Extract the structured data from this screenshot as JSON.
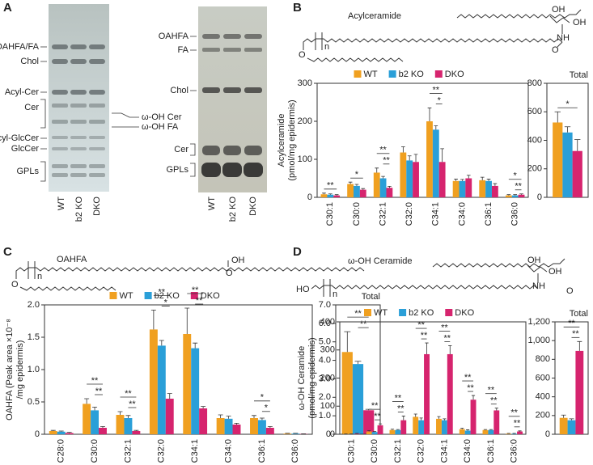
{
  "panels": [
    "A",
    "B",
    "C",
    "D"
  ],
  "tlc": {
    "left_labels": [
      "OAHFA/FA",
      "Chol",
      "Acyl-Cer",
      "Cer",
      "Acyl-GlcCer",
      "GlcCer",
      "GPLs"
    ],
    "middle_labels": [
      "ω-OH Cer",
      "ω-OH FA"
    ],
    "right_labels": [
      "OAHFA",
      "FA",
      "Chol",
      "Cer",
      "GPLs"
    ],
    "lanes": [
      "WT",
      "b2 KO",
      "DKO"
    ]
  },
  "structures": {
    "B": [
      "OH",
      "OH",
      "NH",
      "O",
      "O",
      "n"
    ],
    "C": [
      "OH",
      "O",
      "O",
      "n"
    ],
    "D": [
      "OH",
      "OH",
      "NH",
      "O",
      "HO",
      "n"
    ]
  },
  "chart_data": [
    {
      "type": "bar",
      "panel": "B",
      "structure_name": "Acylceramide",
      "ylabel": [
        "Acylceramide",
        "(pmol/mg epidermis)"
      ],
      "legend": true,
      "categories": [
        "C30:1",
        "C30:0",
        "C32:1",
        "C32:0",
        "C34:1",
        "C34:0",
        "C36:1",
        "C36:0"
      ],
      "series": [
        {
          "name": "WT",
          "color": "#f0a020",
          "values": [
            8,
            35,
            65,
            118,
            200,
            43,
            45,
            5
          ],
          "errors": [
            3,
            5,
            12,
            15,
            35,
            5,
            8,
            2
          ]
        },
        {
          "name": "b2 KO",
          "color": "#2a9fd8",
          "values": [
            7,
            30,
            50,
            97,
            178,
            43,
            43,
            5
          ],
          "errors": [
            2,
            4,
            5,
            12,
            10,
            4,
            5,
            2
          ]
        },
        {
          "name": "DKO",
          "color": "#d6246e",
          "values": [
            5,
            20,
            25,
            93,
            93,
            50,
            30,
            7
          ],
          "errors": [
            2,
            3,
            4,
            20,
            35,
            8,
            6,
            2
          ]
        }
      ],
      "significance": [
        [
          "**"
        ],
        [
          "*"
        ],
        [
          "**",
          "**"
        ],
        null,
        [
          "**",
          "*"
        ],
        null,
        null,
        [
          "*",
          "**"
        ]
      ],
      "ylim": [
        0,
        300
      ],
      "yticks": [
        0,
        100,
        200,
        300
      ]
    },
    {
      "type": "bar",
      "panel": "B",
      "title": "Total",
      "categories": [
        null
      ],
      "series": [
        {
          "name": "WT",
          "color": "#f0a020",
          "values": [
            525
          ],
          "errors": [
            75
          ]
        },
        {
          "name": "b2 KO",
          "color": "#2a9fd8",
          "values": [
            455
          ],
          "errors": [
            40
          ]
        },
        {
          "name": "DKO",
          "color": "#d6246e",
          "values": [
            325
          ],
          "errors": [
            80
          ]
        }
      ],
      "significance": [
        [
          "*"
        ]
      ],
      "ylim": [
        0,
        800
      ],
      "yticks": [
        0,
        200,
        400,
        600,
        800
      ]
    },
    {
      "type": "bar",
      "panel": "C",
      "structure_name": "OAHFA",
      "ylabel": [
        "OAHFA (Peak area ×10⁻⁸",
        "/mg epidermis)"
      ],
      "legend": true,
      "categories": [
        "C28:0",
        "C30:0",
        "C32:1",
        "C32:0",
        "C34:1",
        "C34:0",
        "C36:1",
        "C36:0"
      ],
      "series": [
        {
          "name": "WT",
          "color": "#f0a020",
          "values": [
            0.05,
            0.47,
            0.3,
            1.62,
            1.55,
            0.25,
            0.25,
            0.01
          ],
          "errors": [
            0.01,
            0.08,
            0.05,
            0.3,
            0.4,
            0.05,
            0.04,
            0.005
          ]
        },
        {
          "name": "b2 KO",
          "color": "#2a9fd8",
          "values": [
            0.04,
            0.37,
            0.25,
            1.37,
            1.33,
            0.24,
            0.22,
            0.01
          ],
          "errors": [
            0.01,
            0.05,
            0.04,
            0.08,
            0.08,
            0.04,
            0.03,
            0.005
          ]
        },
        {
          "name": "DKO",
          "color": "#d6246e",
          "values": [
            0.02,
            0.1,
            0.05,
            0.55,
            0.4,
            0.15,
            0.1,
            0.005
          ],
          "errors": [
            0.01,
            0.02,
            0.01,
            0.08,
            0.03,
            0.02,
            0.02,
            0.002
          ]
        }
      ],
      "significance": [
        null,
        [
          "**",
          "**"
        ],
        [
          "**",
          "**"
        ],
        [
          "**",
          "*"
        ],
        [
          "**",
          "**"
        ],
        null,
        [
          "*",
          "*"
        ],
        null
      ],
      "ylim": [
        0,
        2
      ],
      "yticks": [
        0,
        0.5,
        {
          "value": 1,
          "label": "1.0"
        },
        1.5,
        {
          "value": 2,
          "label": "2.0"
        }
      ]
    },
    {
      "type": "bar",
      "panel": "C",
      "title": "Total",
      "categories": [
        null
      ],
      "series": [
        {
          "name": "WT",
          "color": "#f0a020",
          "values": [
            4.45
          ],
          "errors": [
            1.1
          ]
        },
        {
          "name": "b2 KO",
          "color": "#2a9fd8",
          "values": [
            3.8
          ],
          "errors": [
            0.15
          ]
        },
        {
          "name": "DKO",
          "color": "#d6246e",
          "values": [
            1.3
          ],
          "errors": [
            0.05
          ]
        }
      ],
      "significance": [
        [
          "**",
          "**"
        ]
      ],
      "ylim": [
        0,
        7
      ],
      "yticks": [
        0,
        {
          "value": 1,
          "label": "1.0"
        },
        {
          "value": 2,
          "label": "2.0"
        },
        {
          "value": 3,
          "label": "3.0"
        },
        {
          "value": 4,
          "label": "4.0"
        },
        {
          "value": 5,
          "label": "5.0"
        },
        {
          "value": 6,
          "label": "6.0"
        },
        {
          "value": 7,
          "label": "7.0"
        }
      ]
    },
    {
      "type": "bar",
      "panel": "D",
      "structure_name": "ω-OH Ceramide",
      "ylabel": [
        "ω-OH Ceramide",
        "(pmol/mg epidermis)"
      ],
      "legend": true,
      "categories": [
        "C30:1",
        "C30:0",
        "C32:1",
        "C32:0",
        "C34:1",
        "C34:0",
        "C36:1",
        "C36:0"
      ],
      "series": [
        {
          "name": "WT",
          "color": "#f0a020",
          "values": [
            1,
            10,
            15,
            62,
            55,
            18,
            15,
            2
          ],
          "errors": [
            0.5,
            3,
            3,
            10,
            8,
            4,
            2,
            1
          ]
        },
        {
          "name": "b2 KO",
          "color": "#2a9fd8",
          "values": [
            1,
            8,
            15,
            50,
            50,
            13,
            15,
            2
          ],
          "errors": [
            0.5,
            2,
            2,
            8,
            5,
            3,
            2,
            1
          ]
        },
        {
          "name": "DKO",
          "color": "#d6246e",
          "values": [
            2,
            32,
            50,
            285,
            285,
            123,
            85,
            10
          ],
          "errors": [
            1,
            5,
            15,
            40,
            30,
            15,
            8,
            2
          ]
        }
      ],
      "significance": [
        null,
        [
          "**",
          "**"
        ],
        [
          "**",
          "**"
        ],
        [
          "**",
          "**"
        ],
        [
          "**",
          "**"
        ],
        [
          "**",
          "**"
        ],
        [
          "**",
          "**"
        ],
        [
          "**",
          "**"
        ]
      ],
      "ylim": [
        0,
        400
      ],
      "yticks": [
        0,
        100,
        200,
        300,
        400
      ]
    },
    {
      "type": "bar",
      "panel": "D",
      "title": "Total",
      "categories": [
        null
      ],
      "series": [
        {
          "name": "WT",
          "color": "#f0a020",
          "values": [
            175
          ],
          "errors": [
            30
          ]
        },
        {
          "name": "b2 KO",
          "color": "#2a9fd8",
          "values": [
            150
          ],
          "errors": [
            15
          ]
        },
        {
          "name": "DKO",
          "color": "#d6246e",
          "values": [
            890
          ],
          "errors": [
            100
          ]
        }
      ],
      "significance": [
        [
          "**",
          "**"
        ]
      ],
      "ylim": [
        0,
        1200
      ],
      "yticks": [
        0,
        200,
        400,
        600,
        800,
        {
          "value": 1000,
          "label": "1,000"
        },
        {
          "value": 1200,
          "label": "1,200"
        }
      ]
    }
  ]
}
